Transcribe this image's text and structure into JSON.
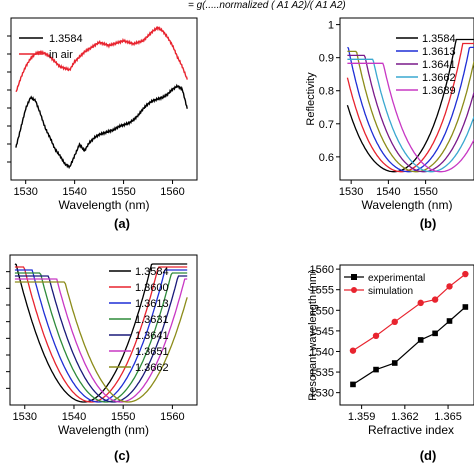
{
  "equation_fragment": "= g(.....normalized  (  A1  A2)/(  A1  A2)",
  "colors": {
    "black": "#000000",
    "red": "#e8242f",
    "blue": "#1f2fd6",
    "magenta": "#c838c4",
    "olive": "#8c8c1a",
    "navy": "#1a1a7a",
    "purple": "#7a1a8a",
    "cyan": "#3aa8d0",
    "green": "#2e8b3a"
  },
  "chart_data": [
    {
      "panel_label": "(a)",
      "type": "line",
      "xlabel": "Wavelength (nm)",
      "ylabel": "",
      "xlim": [
        1527,
        1565
      ],
      "ylim": [
        0,
        10
      ],
      "x_ticks": [
        1530,
        1540,
        1550,
        1560
      ],
      "legend_position": "top-left",
      "series": [
        {
          "name": "1.3584",
          "color": "#000000",
          "x": [
            1528,
            1529,
            1530,
            1531,
            1532,
            1533,
            1534,
            1535,
            1536,
            1537,
            1538,
            1539,
            1540,
            1541,
            1542,
            1543,
            1544,
            1545,
            1546,
            1547,
            1548,
            1549,
            1550,
            1551,
            1552,
            1553,
            1554,
            1555,
            1556,
            1557,
            1558,
            1559,
            1560,
            1561,
            1562,
            1563
          ],
          "y": [
            2.0,
            3.2,
            4.4,
            5.1,
            4.9,
            4.1,
            3.2,
            2.6,
            1.9,
            1.5,
            1.0,
            0.8,
            1.5,
            2.2,
            1.8,
            2.3,
            2.6,
            2.8,
            2.9,
            3.0,
            3.1,
            3.3,
            3.4,
            3.5,
            3.7,
            4.0,
            4.4,
            4.7,
            4.9,
            5.0,
            5.1,
            5.3,
            5.6,
            5.8,
            5.6,
            4.4
          ]
        },
        {
          "name": "in air",
          "color": "#e8242f",
          "x": [
            1528,
            1529,
            1530,
            1531,
            1532,
            1533,
            1534,
            1535,
            1536,
            1537,
            1538,
            1539,
            1540,
            1541,
            1542,
            1543,
            1544,
            1545,
            1546,
            1547,
            1548,
            1549,
            1550,
            1551,
            1552,
            1553,
            1554,
            1555,
            1556,
            1557,
            1558,
            1559,
            1560,
            1561,
            1562,
            1563
          ],
          "y": [
            5.4,
            6.3,
            7.0,
            7.5,
            7.8,
            7.9,
            7.8,
            7.6,
            7.3,
            7.0,
            6.9,
            6.8,
            7.3,
            7.6,
            7.9,
            8.1,
            8.3,
            8.5,
            8.4,
            8.3,
            8.4,
            8.5,
            8.6,
            8.5,
            8.4,
            8.5,
            8.6,
            8.9,
            9.2,
            9.4,
            9.2,
            8.8,
            8.3,
            7.6,
            7.0,
            6.2
          ]
        }
      ]
    },
    {
      "panel_label": "(b)",
      "type": "line",
      "xlabel": "Wavelength (nm)",
      "ylabel": "Reflectivity",
      "xlim": [
        1527,
        1563
      ],
      "ylim": [
        0.53,
        1.02
      ],
      "x_ticks": [
        1530,
        1540,
        1550
      ],
      "y_ticks": [
        0.6,
        0.7,
        0.8,
        0.9,
        1.0
      ],
      "legend_position": "top-right",
      "series": [
        {
          "name": "1.3584",
          "color": "#000000",
          "center": 1541.5,
          "start": 1529,
          "end": 1563
        },
        {
          "name": "1.3600",
          "color": "#e8242f",
          "center": 1543.5,
          "start": 1529,
          "end": 1563
        },
        {
          "name": "1.3613",
          "color": "#1f2fd6",
          "center": 1545.5,
          "start": 1529,
          "end": 1563
        },
        {
          "name": "1.3631",
          "color": "#8c8c1a",
          "center": 1547.5,
          "start": 1529,
          "end": 1563
        },
        {
          "name": "1.3641",
          "color": "#7a1a8a",
          "center": 1549.5,
          "start": 1529,
          "end": 1563
        },
        {
          "name": "1.3662",
          "color": "#3aa8d0",
          "center": 1551.5,
          "start": 1529,
          "end": 1563
        },
        {
          "name": "1.3689",
          "color": "#c838c4",
          "center": 1554.0,
          "start": 1529,
          "end": 1563
        }
      ],
      "legend_entries": [
        "1.3584",
        "1.3613",
        "1.3641",
        "1.3662",
        "1.3689"
      ]
    },
    {
      "panel_label": "(c)",
      "type": "line",
      "xlabel": "Wavelength (nm)",
      "ylabel": "",
      "xlim": [
        1527,
        1565
      ],
      "ylim": [
        0,
        1
      ],
      "x_ticks": [
        1530,
        1540,
        1550,
        1560
      ],
      "legend_position": "top-right",
      "series": [
        {
          "name": "1.3584",
          "color": "#000000",
          "center": 1542.0,
          "start": 1528,
          "end": 1563
        },
        {
          "name": "1.3600",
          "color": "#e8242f",
          "center": 1543.5,
          "start": 1528,
          "end": 1563
        },
        {
          "name": "1.3613",
          "color": "#1f2fd6",
          "center": 1545.0,
          "start": 1528,
          "end": 1563
        },
        {
          "name": "1.3631",
          "color": "#2e8b3a",
          "center": 1546.5,
          "start": 1528,
          "end": 1563
        },
        {
          "name": "1.3641",
          "color": "#1a1a7a",
          "center": 1548.0,
          "start": 1528,
          "end": 1563
        },
        {
          "name": "1.3651",
          "color": "#c838c4",
          "center": 1549.5,
          "start": 1528,
          "end": 1563
        },
        {
          "name": "1.3662",
          "color": "#8c8c1a",
          "center": 1551.0,
          "start": 1528,
          "end": 1563
        }
      ]
    },
    {
      "panel_label": "(d)",
      "type": "line",
      "xlabel": "Refractive index",
      "ylabel": "Resonant wavelength (nm)",
      "xlim": [
        1.3575,
        1.3668
      ],
      "ylim": [
        1527,
        1561
      ],
      "x_ticks": [
        1.359,
        1.362,
        1.365
      ],
      "x_tick_labels": [
        "1.359",
        "1.362",
        "1.365"
      ],
      "y_ticks": [
        1530,
        1535,
        1540,
        1545,
        1550,
        1555,
        1560
      ],
      "legend_position": "top-left",
      "series": [
        {
          "name": "experimental",
          "color": "#000000",
          "marker": "square",
          "x": [
            1.3584,
            1.36,
            1.3613,
            1.3631,
            1.3641,
            1.3651,
            1.3662
          ],
          "y": [
            1532.0,
            1535.6,
            1537.2,
            1542.8,
            1544.4,
            1547.4,
            1550.8
          ]
        },
        {
          "name": "simulation",
          "color": "#e8242f",
          "marker": "circle",
          "x": [
            1.3584,
            1.36,
            1.3613,
            1.3631,
            1.3641,
            1.3651,
            1.3662
          ],
          "y": [
            1540.2,
            1543.8,
            1547.2,
            1551.8,
            1552.6,
            1555.8,
            1558.8
          ]
        }
      ]
    }
  ]
}
